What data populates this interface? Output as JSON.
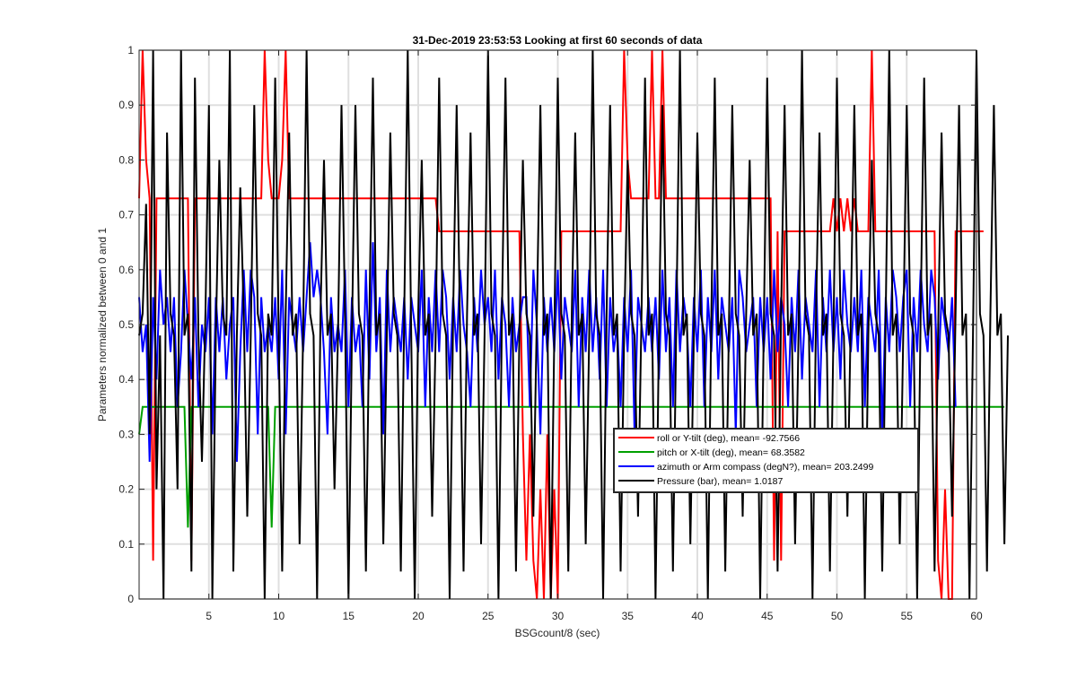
{
  "chart_data": {
    "type": "line",
    "title": "31-Dec-2019 23:53:53 Looking at first 60 seconds of data",
    "xlabel": "BSGcount/8 (sec)",
    "ylabel": "Parameters normalized between 0 and 1",
    "xlim": [
      0,
      60
    ],
    "ylim": [
      0,
      1
    ],
    "grid": true,
    "legend_position": "lower-right inside",
    "x_ticks": [
      5,
      10,
      15,
      20,
      25,
      30,
      35,
      40,
      45,
      50,
      55,
      60
    ],
    "x_tick_labels": [
      "5",
      "10",
      "15",
      "20",
      "25",
      "30",
      "35",
      "40",
      "45",
      "50",
      "55",
      "60"
    ],
    "y_ticks": [
      0,
      0.1,
      0.2,
      0.3,
      0.4,
      0.5,
      0.6,
      0.7,
      0.8,
      0.9,
      1
    ],
    "y_tick_labels": [
      "0",
      "0.1",
      "0.2",
      "0.3",
      "0.4",
      "0.5",
      "0.6",
      "0.7",
      "0.8",
      "0.9",
      "1"
    ],
    "x_start": 0,
    "x_step": 0.25,
    "series": [
      {
        "name": "roll or Y-tilt (deg), mean= -92.7566",
        "color": "#ff0000",
        "values": [
          0.73,
          1,
          0.8,
          0.73,
          0.07,
          0.73,
          0.73,
          0.73,
          0.73,
          0.73,
          0.73,
          0.73,
          0.73,
          0.73,
          0.73,
          0.07,
          0.73,
          0.73,
          0.73,
          0.73,
          0.73,
          0.73,
          0.73,
          0.73,
          0.73,
          0.73,
          0.73,
          0.73,
          0.73,
          0.73,
          0.73,
          0.73,
          0.73,
          0.73,
          0.73,
          0.73,
          1,
          0.8,
          0.73,
          0.73,
          0.73,
          0.8,
          1,
          0.73,
          0.73,
          0.73,
          0.73,
          0.73,
          0.73,
          0.73,
          0.73,
          0.73,
          0.73,
          0.73,
          0.73,
          0.73,
          0.73,
          0.73,
          0.73,
          0.73,
          0.73,
          0.73,
          0.73,
          0.73,
          0.73,
          0.73,
          0.73,
          0.73,
          0.73,
          0.73,
          0.73,
          0.73,
          0.73,
          0.73,
          0.73,
          0.73,
          0.73,
          0.73,
          0.73,
          0.73,
          0.73,
          0.73,
          0.73,
          0.73,
          0.73,
          0.73,
          0.67,
          0.67,
          0.67,
          0.67,
          0.67,
          0.67,
          0.67,
          0.67,
          0.67,
          0.67,
          0.67,
          0.67,
          0.67,
          0.67,
          0.67,
          0.67,
          0.67,
          0.67,
          0.67,
          0.67,
          0.67,
          0.67,
          0.67,
          0.67,
          0.3,
          0.07,
          0.3,
          0.07,
          0,
          0.2,
          0,
          0.3,
          0,
          0.2,
          0,
          0.67,
          0.67,
          0.67,
          0.67,
          0.67,
          0.67,
          0.67,
          0.67,
          0.67,
          0.67,
          0.67,
          0.67,
          0.67,
          0.67,
          0.67,
          0.67,
          0.67,
          0.67,
          1,
          0.8,
          0.73,
          0.73,
          0.73,
          0.73,
          0.73,
          0.73,
          1,
          0.73,
          0.73,
          1,
          0.73,
          0.73,
          0.73,
          0.73,
          0.73,
          0.73,
          0.73,
          0.73,
          0.73,
          0.73,
          0.73,
          0.73,
          0.73,
          0.73,
          0.73,
          0.73,
          0.73,
          0.73,
          0.73,
          0.73,
          0.73,
          0.73,
          0.73,
          0.73,
          0.73,
          0.73,
          0.73,
          0.73,
          0.73,
          0.73,
          0.73,
          0.07,
          0.67,
          0.07,
          0.67,
          0.67,
          0.67,
          0.67,
          0.67,
          0.67,
          0.67,
          0.67,
          0.67,
          0.67,
          0.67,
          0.67,
          0.67,
          0.67,
          0.73,
          0.67,
          0.73,
          0.67,
          0.73,
          0.67,
          0.73,
          0.67,
          0.67,
          0.67,
          0.67,
          1,
          0.67,
          0.67,
          0.67,
          0.67,
          0.67,
          0.67,
          0.67,
          0.67,
          0.67,
          0.67,
          0.67,
          0.67,
          0.67,
          0.67,
          0.67,
          0.67,
          0.67,
          0.67,
          0.07,
          0,
          0.2,
          0,
          0,
          0.67,
          0.67,
          0.67,
          0.67,
          0.67,
          0.67,
          0.67,
          0.67,
          0.67
        ]
      },
      {
        "name": "pitch or X-tilt (deg), mean= 68.3582",
        "color": "#00a000",
        "values": [
          0.3,
          0.35,
          0.35,
          0.35,
          0.35,
          0.35,
          0.35,
          0.35,
          0.35,
          0.35,
          0.35,
          0.35,
          0.35,
          0.35,
          0.13,
          0.35,
          0.35,
          0.35,
          0.35,
          0.35,
          0.35,
          0.35,
          0.35,
          0.35,
          0.35,
          0.35,
          0.35,
          0.35,
          0.35,
          0.35,
          0.35,
          0.35,
          0.35,
          0.35,
          0.35,
          0.35,
          0.35,
          0.35,
          0.13,
          0.35,
          0.35,
          0.35,
          0.35,
          0.35,
          0.35,
          0.35,
          0.35,
          0.35,
          0.35,
          0.35,
          0.35,
          0.35,
          0.35,
          0.35,
          0.35,
          0.35,
          0.35,
          0.35,
          0.35,
          0.35,
          0.35,
          0.35,
          0.35,
          0.35,
          0.35,
          0.35,
          0.35,
          0.35,
          0.35,
          0.35,
          0.35,
          0.35,
          0.35,
          0.35,
          0.35,
          0.35,
          0.35,
          0.35,
          0.35,
          0.35,
          0.35,
          0.35,
          0.35,
          0.35,
          0.35,
          0.35,
          0.35,
          0.35,
          0.35,
          0.35,
          0.35,
          0.35,
          0.35,
          0.35,
          0.35,
          0.35,
          0.35,
          0.35,
          0.35,
          0.35,
          0.35,
          0.35,
          0.35,
          0.35,
          0.35,
          0.35,
          0.35,
          0.35,
          0.35,
          0.35,
          0.35,
          0.35,
          0.35,
          0.35,
          0.35,
          0.35,
          0.35,
          0.35,
          0.35,
          0.35,
          0.35,
          0.35,
          0.35,
          0.35,
          0.35,
          0.35,
          0.35,
          0.35,
          0.35,
          0.35,
          0.35,
          0.35,
          0.35,
          0.35,
          0.35,
          0.35,
          0.35,
          0.35,
          0.35,
          0.35,
          0.35,
          0.35,
          0.35,
          0.35,
          0.35,
          0.35,
          0.35,
          0.35,
          0.35,
          0.35,
          0.35,
          0.35,
          0.35,
          0.35,
          0.35,
          0.35,
          0.35,
          0.35,
          0.35,
          0.35,
          0.35,
          0.35,
          0.35,
          0.35,
          0.35,
          0.35,
          0.35,
          0.35,
          0.35,
          0.35,
          0.35,
          0.35,
          0.35,
          0.35,
          0.35,
          0.35,
          0.35,
          0.35,
          0.35,
          0.35,
          0.35,
          0.35,
          0.35,
          0.35,
          0.35,
          0.35,
          0.35,
          0.35,
          0.35,
          0.35,
          0.35,
          0.35,
          0.35,
          0.35,
          0.35,
          0.35,
          0.35,
          0.35,
          0.35,
          0.35,
          0.35,
          0.35,
          0.35,
          0.35,
          0.35,
          0.35,
          0.35,
          0.35,
          0.35,
          0.35,
          0.35,
          0.35,
          0.35,
          0.35,
          0.35,
          0.35,
          0.35,
          0.35,
          0.35,
          0.35,
          0.35,
          0.35,
          0.35,
          0.35,
          0.35,
          0.35,
          0.35,
          0.35,
          0.35,
          0.35,
          0.35,
          0.35,
          0.35,
          0.35,
          0.35,
          0.35,
          0.35,
          0.35,
          0.35,
          0.35,
          0.35,
          0.35,
          0.35,
          0.35,
          0.35,
          0.35,
          0.35,
          0.35,
          0.35
        ]
      },
      {
        "name": "azimuth or Arm compass (degN?), mean= 203.2499",
        "color": "#0000ff",
        "values": [
          0.55,
          0.45,
          0.5,
          0.25,
          0.55,
          0.4,
          0.6,
          0.5,
          0.55,
          0.45,
          0.55,
          0.35,
          0.45,
          0.6,
          0.5,
          0.4,
          0.55,
          0.35,
          0.5,
          0.45,
          0.55,
          0.3,
          0.55,
          0.45,
          0.55,
          0.4,
          0.5,
          0.55,
          0.25,
          0.45,
          0.6,
          0.45,
          0.6,
          0.55,
          0.3,
          0.55,
          0.45,
          0.5,
          0.45,
          0.55,
          0.4,
          0.6,
          0.3,
          0.55,
          0.5,
          0.45,
          0.55,
          0.45,
          0.55,
          0.65,
          0.55,
          0.6,
          0.55,
          0.45,
          0.3,
          0.55,
          0.45,
          0.5,
          0.45,
          0.6,
          0.35,
          0.55,
          0.45,
          0.5,
          0.35,
          0.6,
          0.4,
          0.65,
          0.45,
          0.55,
          0.3,
          0.6,
          0.45,
          0.55,
          0.5,
          0.45,
          0.55,
          0.4,
          0.55,
          0.5,
          0.45,
          0.6,
          0.35,
          0.55,
          0.45,
          0.6,
          0.45,
          0.6,
          0.55,
          0.4,
          0.55,
          0.45,
          0.6,
          0.5,
          0.45,
          0.35,
          0.55,
          0.45,
          0.6,
          0.5,
          0.55,
          0.45,
          0.6,
          0.4,
          0.55,
          0.5,
          0.35,
          0.55,
          0.45,
          0.5,
          0.55,
          0.55,
          0.35,
          0.6,
          0.5,
          0.3,
          0.55,
          0.45,
          0.55,
          0.45,
          0.6,
          0.4,
          0.55,
          0.5,
          0.45,
          0.6,
          0.35,
          0.55,
          0.45,
          0.6,
          0.45,
          0.55,
          0.4,
          0.6,
          0.35,
          0.55,
          0.45,
          0.5,
          0.35,
          0.55,
          0.45,
          0.6,
          0.3,
          0.55,
          0.5,
          0.45,
          0.55,
          0.45,
          0.55,
          0.4,
          0.6,
          0.45,
          0.55,
          0.35,
          0.6,
          0.45,
          0.55,
          0.5,
          0.35,
          0.55,
          0.45,
          0.6,
          0.35,
          0.55,
          0.45,
          0.6,
          0.4,
          0.55,
          0.5,
          0.45,
          0.55,
          0.3,
          0.6,
          0.55,
          0.45,
          0.5,
          0.55,
          0.35,
          0.55,
          0.45,
          0.55,
          0.4,
          0.6,
          0.45,
          0.55,
          0.5,
          0.35,
          0.55,
          0.45,
          0.6,
          0.4,
          0.55,
          0.5,
          0.45,
          0.6,
          0.35,
          0.55,
          0.45,
          0.6,
          0.45,
          0.55,
          0.4,
          0.6,
          0.5,
          0.45,
          0.55,
          0.45,
          0.6,
          0.35,
          0.55,
          0.5,
          0.45,
          0.6,
          0.3,
          0.55,
          0.45,
          0.6,
          0.55,
          0.45,
          0.55,
          0.6,
          0.35,
          0.55,
          0.45,
          0.6,
          0.5,
          0.45,
          0.6,
          0.55,
          0.4,
          0.55,
          0.5,
          0.45,
          0.55,
          0.35
        ]
      },
      {
        "name": "Pressure (bar), mean= 1.0187",
        "color": "#000000",
        "values": [
          0.48,
          0.52,
          0.72,
          0.3,
          1,
          0.2,
          0.48,
          0,
          0.85,
          0.52,
          0.48,
          0.2,
          1,
          0.48,
          0.52,
          0.05,
          0.95,
          0.48,
          0.25,
          0.52,
          0.9,
          0,
          0.48,
          0.8,
          0.52,
          0.48,
          1,
          0.05,
          0.48,
          0.75,
          0.52,
          0.15,
          0.48,
          0.9,
          0.52,
          0.48,
          0,
          0.52,
          0.48,
          0.95,
          0.48,
          0.05,
          0.52,
          0.85,
          0.48,
          0.52,
          0.1,
          0.48,
          1,
          0.52,
          0.48,
          0,
          0.52,
          0.8,
          0.48,
          0.52,
          0.2,
          0.48,
          0.9,
          0.52,
          0,
          0.48,
          0.9,
          0.52,
          0.48,
          0.05,
          0.52,
          0.95,
          0.48,
          0.52,
          0.1,
          0.48,
          0.85,
          0.52,
          0.48,
          0.05,
          0.52,
          1,
          0.48,
          0,
          0.52,
          0.8,
          0.48,
          0.52,
          0.15,
          0.48,
          0.95,
          0.52,
          0.48,
          0,
          0.52,
          0.9,
          0.48,
          0.05,
          0.52,
          0.85,
          0.48,
          0.52,
          0.1,
          0.48,
          1,
          0.52,
          0.48,
          0,
          0.52,
          0.95,
          0.48,
          0.52,
          0.05,
          0.48,
          0.8,
          0.52,
          0.48,
          0.15,
          0.52,
          0.9,
          0.48,
          0.52,
          0,
          0.48,
          0.95,
          0.52,
          0.48,
          0.05,
          0.52,
          0.85,
          0.48,
          0.52,
          0.1,
          0.48,
          1,
          0.52,
          0.48,
          0,
          0.52,
          0.9,
          0.48,
          0.52,
          0.05,
          0.48,
          0.8,
          0.52,
          0.48,
          0.15,
          0.52,
          0.95,
          0.48,
          0.52,
          0,
          0.48,
          0.9,
          0.52,
          0.48,
          0.05,
          0.52,
          1,
          0.48,
          0.52,
          0.1,
          0.48,
          0.85,
          0.52,
          0.48,
          0,
          0.52,
          0.95,
          0.48,
          0.52,
          0.05,
          0.48,
          0.9,
          0.52,
          0.48,
          0.15,
          0.52,
          0.8,
          0.48,
          0.52,
          0,
          0.48,
          0.95,
          0.52,
          0.48,
          0.05,
          0.52,
          0.9,
          0.48,
          0.52,
          0.1,
          0.48,
          1,
          0.52,
          0.48,
          0,
          0.52,
          0.85,
          0.48,
          0.52,
          0.05,
          0.48,
          0.95,
          0.52,
          0.48,
          0.15,
          0.52,
          0.9,
          0.48,
          0.52,
          0,
          0.48,
          0.8,
          0.52,
          0.48,
          0.05,
          0.52,
          1,
          0.48,
          0.52,
          0.1,
          0.48,
          0.9,
          0.52,
          0.48,
          0,
          0.52,
          0.95,
          0.48,
          0.52,
          0.05,
          0.48,
          0.85,
          0.52,
          0.48,
          0.15,
          0.52,
          0.9,
          0.48,
          0.52,
          0,
          0.48,
          1,
          0.52,
          0.48,
          0.05,
          0.52,
          0.9,
          0.48,
          0.52,
          0.1,
          0.48
        ]
      }
    ]
  }
}
